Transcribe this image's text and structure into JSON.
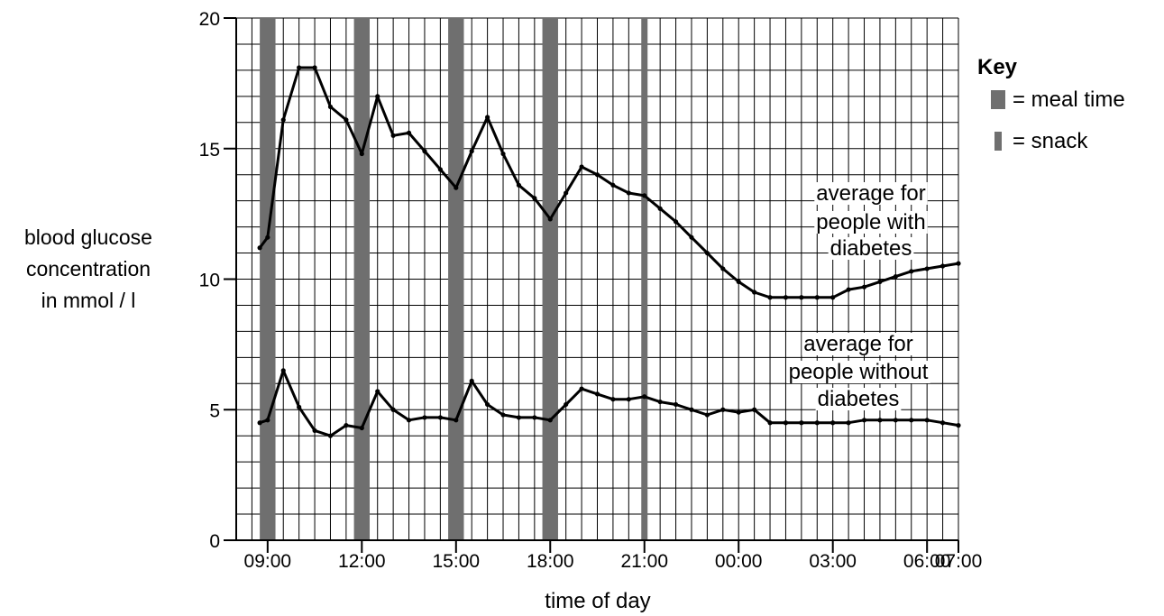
{
  "chart_data": {
    "type": "line",
    "xlabel": "time of day",
    "ylabel": [
      "blood glucose",
      "concentration",
      "in mmol / l"
    ],
    "ylim": [
      0,
      20
    ],
    "yticks": [
      "0",
      "5",
      "10",
      "15",
      "20"
    ],
    "x_unit": "hours from 08:00",
    "xlim": [
      0,
      23
    ],
    "xticks": [
      {
        "label": "09:00",
        "x": 1
      },
      {
        "label": "12:00",
        "x": 4
      },
      {
        "label": "15:00",
        "x": 7
      },
      {
        "label": "18:00",
        "x": 10
      },
      {
        "label": "21:00",
        "x": 13
      },
      {
        "label": "00:00",
        "x": 16
      },
      {
        "label": "03:00",
        "x": 19
      },
      {
        "label": "06:00",
        "x": 22
      },
      {
        "label": "07:00",
        "x": 23
      }
    ],
    "grid": true,
    "meals": [
      {
        "kind": "meal time",
        "start": 0.75,
        "end": 1.25
      },
      {
        "kind": "meal time",
        "start": 3.75,
        "end": 4.25
      },
      {
        "kind": "meal time",
        "start": 6.75,
        "end": 7.25
      },
      {
        "kind": "meal time",
        "start": 9.75,
        "end": 10.25
      },
      {
        "kind": "snack",
        "start": 12.9,
        "end": 13.1
      }
    ],
    "key": {
      "title": "Key",
      "items": [
        {
          "kind": "meal",
          "label": "= meal time"
        },
        {
          "kind": "snack",
          "label": "= snack"
        }
      ]
    },
    "series": [
      {
        "name": "average for people with diabetes",
        "label_lines": [
          "average for",
          "people with",
          "diabetes"
        ],
        "x": [
          0.75,
          1.0,
          1.5,
          2.0,
          2.5,
          3.0,
          3.5,
          4.0,
          4.5,
          5.0,
          5.5,
          6.0,
          6.5,
          7.0,
          7.5,
          8.0,
          8.5,
          9.0,
          9.5,
          10.0,
          10.5,
          11.0,
          11.5,
          12.0,
          12.5,
          13.0,
          13.5,
          14.0,
          14.5,
          15.0,
          15.5,
          16.0,
          16.5,
          17.0,
          17.5,
          18.0,
          18.5,
          19.0,
          19.5,
          20.0,
          20.5,
          21.0,
          21.5,
          22.0,
          22.5,
          23.0
        ],
        "values": [
          11.2,
          11.6,
          16.1,
          18.1,
          18.1,
          16.6,
          16.1,
          14.8,
          17.0,
          15.5,
          15.6,
          14.9,
          14.2,
          13.5,
          14.9,
          16.2,
          14.8,
          13.6,
          13.1,
          12.3,
          13.3,
          14.3,
          14.0,
          13.6,
          13.3,
          13.2,
          12.7,
          12.2,
          11.6,
          11.0,
          10.4,
          9.9,
          9.5,
          9.3,
          9.3,
          9.3,
          9.3,
          9.3,
          9.6,
          9.7,
          9.9,
          10.1,
          10.3,
          10.4,
          10.5,
          10.6
        ]
      },
      {
        "name": "average for people without diabetes",
        "label_lines": [
          "average for",
          "people without",
          "diabetes"
        ],
        "x": [
          0.75,
          1.0,
          1.5,
          2.0,
          2.5,
          3.0,
          3.5,
          4.0,
          4.5,
          5.0,
          5.5,
          6.0,
          6.5,
          7.0,
          7.5,
          8.0,
          8.5,
          9.0,
          9.5,
          10.0,
          10.5,
          11.0,
          11.5,
          12.0,
          12.5,
          13.0,
          13.5,
          14.0,
          14.5,
          15.0,
          15.5,
          16.0,
          16.5,
          17.0,
          17.5,
          18.0,
          18.5,
          19.0,
          19.5,
          20.0,
          20.5,
          21.0,
          21.5,
          22.0,
          22.5,
          23.0
        ],
        "values": [
          4.5,
          4.6,
          6.5,
          5.1,
          4.2,
          4.0,
          4.4,
          4.3,
          5.7,
          5.0,
          4.6,
          4.7,
          4.7,
          4.6,
          6.1,
          5.2,
          4.8,
          4.7,
          4.7,
          4.6,
          5.2,
          5.8,
          5.6,
          5.4,
          5.4,
          5.5,
          5.3,
          5.2,
          5.0,
          4.8,
          5.0,
          4.9,
          5.0,
          4.5,
          4.5,
          4.5,
          4.5,
          4.5,
          4.5,
          4.6,
          4.6,
          4.6,
          4.6,
          4.6,
          4.5,
          4.4
        ]
      }
    ]
  }
}
